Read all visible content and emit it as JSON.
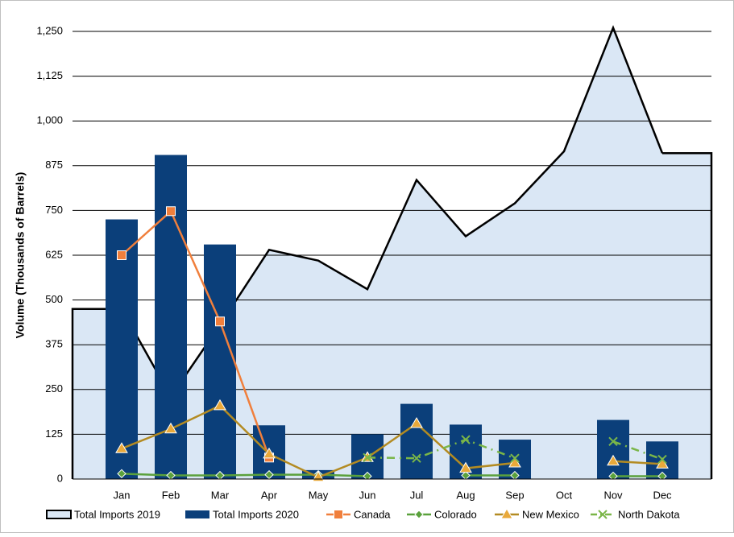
{
  "chart_data": {
    "type": "combo",
    "y_label": "Volume (Thousands of Barrels)",
    "categories": [
      "Jan",
      "Feb",
      "Mar",
      "Apr",
      "May",
      "Jun",
      "Jul",
      "Aug",
      "Sep",
      "Oct",
      "Nov",
      "Dec"
    ],
    "ylim": [
      0,
      1250
    ],
    "yticks": [
      0,
      125,
      250,
      375,
      500,
      625,
      750,
      875,
      {
        "value": 1000,
        "label": "1,000"
      },
      {
        "value": 1125,
        "label": "1,125"
      },
      {
        "value": 1250,
        "label": "1,250"
      }
    ],
    "grid": true,
    "legend": "bottom",
    "series": [
      {
        "name": "Total Imports 2019",
        "kind": "area",
        "color": "#dae7f5",
        "values": [
          475,
          230,
          430,
          640,
          610,
          530,
          835,
          678,
          770,
          915,
          1260,
          910
        ]
      },
      {
        "name": "Total Imports 2020",
        "kind": "bar",
        "color": "#0b3f7a",
        "values": [
          725,
          905,
          655,
          150,
          25,
          125,
          210,
          152,
          110,
          null,
          165,
          105
        ]
      },
      {
        "name": "Canada",
        "kind": "line",
        "marker": "square",
        "color": "#f07f3c",
        "values": [
          625,
          748,
          440,
          60,
          null,
          null,
          null,
          null,
          null,
          null,
          null,
          null
        ]
      },
      {
        "name": "Colorado",
        "kind": "line",
        "marker": "diamond",
        "color": "#5aa13c",
        "values": [
          15,
          10,
          10,
          12,
          12,
          8,
          null,
          10,
          10,
          null,
          8,
          8
        ]
      },
      {
        "name": "New Mexico",
        "kind": "line",
        "marker": "triangle",
        "color": "#b38b22",
        "values": [
          85,
          140,
          205,
          70,
          5,
          60,
          155,
          30,
          45,
          null,
          50,
          42
        ]
      },
      {
        "name": "North Dakota",
        "kind": "line",
        "marker": "x",
        "dashed": true,
        "color": "#7ab648",
        "values": [
          null,
          null,
          null,
          null,
          null,
          60,
          58,
          110,
          58,
          null,
          105,
          55
        ]
      }
    ]
  }
}
